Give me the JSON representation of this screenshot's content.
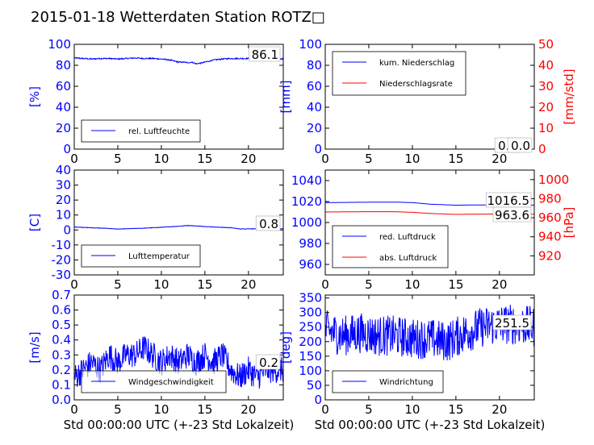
{
  "figure_title": "2015-01-18 Wetterdaten Station ROTZ□",
  "colors": {
    "left": "#0000ff",
    "right": "#ff0000",
    "axis": "#000000"
  },
  "chart_data": [
    {
      "type": "line",
      "panel": "humidity",
      "ylabel": "[%]",
      "xlabel": "",
      "xlim": [
        0,
        24
      ],
      "ylim": [
        0,
        100
      ],
      "xticks": [
        0,
        5,
        10,
        15,
        20
      ],
      "yticks": [
        0,
        20,
        40,
        60,
        80,
        100
      ],
      "legend_placement": "lower-left",
      "annotation": "86.1",
      "series": [
        {
          "name": "rel. Luftfeuchte",
          "color": "#0000ff",
          "noise": 0.6,
          "x": [
            0,
            1,
            2,
            3,
            4,
            5,
            6,
            7,
            8,
            9,
            10,
            11,
            11.5,
            12,
            12.5,
            13,
            13.5,
            14,
            14.5,
            15,
            16,
            17,
            18,
            19,
            20,
            21,
            22,
            23,
            24
          ],
          "y": [
            87,
            86.5,
            86,
            86.5,
            86.5,
            86,
            86.5,
            87,
            86.5,
            86.5,
            86,
            85,
            84,
            83,
            83,
            82.5,
            83,
            81.5,
            82,
            83,
            85,
            86,
            86.5,
            86.5,
            86.5,
            86.5,
            86.5,
            86.3,
            86.1
          ]
        }
      ]
    },
    {
      "type": "line",
      "panel": "precipitation",
      "ylabel": "[mm]",
      "ylabel_right": "[mm/std]",
      "xlabel": "",
      "xlim": [
        0,
        24
      ],
      "ylim": [
        0,
        100
      ],
      "ylim_right": [
        0,
        50
      ],
      "xticks": [
        0,
        5,
        10,
        15,
        20
      ],
      "yticks": [
        0,
        20,
        40,
        60,
        80,
        100
      ],
      "yticks_right": [
        0,
        10,
        20,
        30,
        40,
        50
      ],
      "legend_placement": "upper-left",
      "annotation": "0.0",
      "annotation_right": "0.0",
      "series": [
        {
          "name": "kum. Niederschlag",
          "color": "#0000ff",
          "axis": "left",
          "noise": 0,
          "x": [
            0,
            24
          ],
          "y": [
            0,
            0
          ]
        },
        {
          "name": "Niederschlagsrate",
          "color": "#ff0000",
          "axis": "right",
          "noise": 0,
          "x": [
            0,
            24
          ],
          "y": [
            0,
            0
          ]
        }
      ]
    },
    {
      "type": "line",
      "panel": "temperature",
      "ylabel": "[C]",
      "xlabel": "",
      "xlim": [
        0,
        24
      ],
      "ylim": [
        -30,
        40
      ],
      "xticks": [
        0,
        5,
        10,
        15,
        20
      ],
      "yticks": [
        -30,
        -20,
        -10,
        0,
        10,
        20,
        30,
        40
      ],
      "legend_placement": "lower-left",
      "annotation": "0.8",
      "series": [
        {
          "name": "Lufttemperatur",
          "color": "#0000ff",
          "noise": 0.15,
          "x": [
            0,
            2,
            4,
            5,
            6,
            8,
            10,
            12,
            13,
            14,
            16,
            18,
            19,
            20,
            22,
            24
          ],
          "y": [
            2,
            1.5,
            1,
            0.6,
            0.8,
            1.2,
            1.8,
            2.5,
            3,
            2.7,
            2,
            1.5,
            0.7,
            0.8,
            0.8,
            0.8
          ]
        }
      ]
    },
    {
      "type": "line",
      "panel": "pressure",
      "ylabel": "",
      "ylabel_right": "[hPa]",
      "xlabel": "",
      "xlim": [
        0,
        24
      ],
      "ylim": [
        950,
        1050
      ],
      "ylim_right": [
        900,
        1010
      ],
      "xticks": [
        0,
        5,
        10,
        15,
        20
      ],
      "yticks": [
        960,
        980,
        1000,
        1020,
        1040
      ],
      "yticks_right": [
        920,
        940,
        960,
        980,
        1000
      ],
      "legend_placement": "lower-left",
      "annotation": "1016.5",
      "annotation_right": "963.6",
      "series": [
        {
          "name": "red. Luftdruck",
          "color": "#0000ff",
          "axis": "left",
          "noise": 0,
          "x": [
            0,
            4,
            8,
            10,
            12,
            15,
            18,
            21,
            24
          ],
          "y": [
            1019,
            1019.3,
            1019.5,
            1019,
            1017.5,
            1016.5,
            1016.8,
            1016.8,
            1016.5
          ]
        },
        {
          "name": "abs. Luftdruck",
          "color": "#ff0000",
          "axis": "right",
          "noise": 0,
          "x": [
            0,
            4,
            8,
            10,
            12,
            15,
            18,
            21,
            24
          ],
          "y": [
            966,
            966.3,
            966.3,
            965.7,
            964.5,
            963.5,
            963.8,
            964,
            963.6
          ]
        }
      ]
    },
    {
      "type": "line",
      "panel": "wind-speed",
      "ylabel": "[m/s]",
      "xlabel": "Std 00:00:00 UTC (+-23 Std Lokalzeit)",
      "xlim": [
        0,
        24
      ],
      "ylim": [
        0,
        0.7
      ],
      "xticks": [
        0,
        5,
        10,
        15,
        20
      ],
      "yticks": [
        0.0,
        0.1,
        0.2,
        0.3,
        0.4,
        0.5,
        0.6,
        0.7
      ],
      "legend_placement": "lower-center",
      "annotation": "0.2",
      "series": [
        {
          "name": "Windgeschwindigkeit",
          "color": "#0000ff",
          "noise": 0.09,
          "x": [
            0,
            1,
            2,
            3,
            4,
            5,
            6,
            7,
            8,
            9,
            10,
            11,
            12,
            13,
            14,
            15,
            16,
            17,
            18,
            19,
            20,
            21,
            22,
            23,
            24
          ],
          "y": [
            0.15,
            0.2,
            0.25,
            0.2,
            0.3,
            0.25,
            0.3,
            0.3,
            0.35,
            0.3,
            0.25,
            0.3,
            0.25,
            0.3,
            0.25,
            0.3,
            0.25,
            0.3,
            0.2,
            0.15,
            0.2,
            0.15,
            0.2,
            0.2,
            0.2
          ]
        }
      ]
    },
    {
      "type": "line",
      "panel": "wind-direction",
      "ylabel": "[deg]",
      "xlabel": "Std 00:00:00 UTC (+-23 Std Lokalzeit)",
      "xlim": [
        0,
        24
      ],
      "ylim": [
        0,
        360
      ],
      "xticks": [
        0,
        5,
        10,
        15,
        20
      ],
      "yticks": [
        0,
        50,
        100,
        150,
        200,
        250,
        300,
        350
      ],
      "legend_placement": "lower-left",
      "annotation": "251.5",
      "series": [
        {
          "name": "Windrichtung",
          "color": "#0000ff",
          "noise": 70,
          "x": [
            0,
            2,
            4,
            6,
            8,
            10,
            12,
            14,
            16,
            18,
            20,
            22,
            24
          ],
          "y": [
            240,
            220,
            230,
            220,
            220,
            210,
            210,
            200,
            230,
            250,
            260,
            260,
            250
          ]
        }
      ]
    }
  ]
}
